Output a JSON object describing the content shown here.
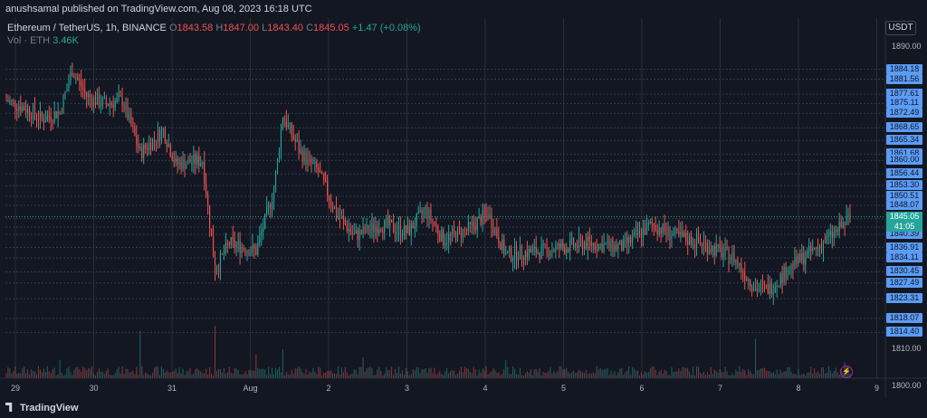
{
  "header": {
    "published": "anushsamal published on TradingView.com, Aug 08, 2023 16:18 UTC"
  },
  "legend": {
    "symbol": "Ethereum / TetherUS, 1h, BINANCE",
    "open_label": "O",
    "open": "1843.58",
    "high_label": "H",
    "high": "1847.00",
    "low_label": "L",
    "low": "1843.40",
    "close_label": "C",
    "close": "1845.05",
    "change": "+1.47 (+0.08%)",
    "vol_label": "Vol · ETH",
    "vol_value": "3.46K"
  },
  "currency": "USDT",
  "footer": {
    "brand": "TradingView"
  },
  "colors": {
    "up": "#26a69a",
    "down": "#ef5350",
    "label_bg": "#5b9cf6",
    "background": "#131722",
    "grid": "#2a2e39"
  },
  "chart_data": {
    "type": "candlestick",
    "price_axis_ticks": [
      "1890.00",
      "1810.00",
      "1800.00"
    ],
    "price_range": [
      1796,
      1892
    ],
    "level_labels": [
      "1884.18",
      "1881.56",
      "1877.61",
      "1875.11",
      "1872.49",
      "1868.65",
      "1865.34",
      "1861.68",
      "1860.00",
      "1856.44",
      "1853.30",
      "1850.51",
      "1848.07",
      "1844.58",
      "1842.31",
      "1840.39",
      "1836.91",
      "1834.11",
      "1830.45",
      "1827.49",
      "1823.31",
      "1818.07",
      "1814.40"
    ],
    "current_price": "1845.05",
    "countdown": "41:05",
    "x_labels": [
      "29",
      "30",
      "31",
      "Aug",
      "2",
      "3",
      "4",
      "5",
      "6",
      "7",
      "8",
      "9"
    ],
    "key_points": [
      {
        "t": 0,
        "price": 1876
      },
      {
        "t": 10,
        "price": 1874
      },
      {
        "t": 20,
        "price": 1871
      },
      {
        "t": 30,
        "price": 1873
      },
      {
        "t": 37,
        "price": 1884
      },
      {
        "t": 45,
        "price": 1877
      },
      {
        "t": 55,
        "price": 1875
      },
      {
        "t": 65,
        "price": 1876
      },
      {
        "t": 75,
        "price": 1862
      },
      {
        "t": 88,
        "price": 1868
      },
      {
        "t": 95,
        "price": 1859
      },
      {
        "t": 110,
        "price": 1860
      },
      {
        "t": 117,
        "price": 1831
      },
      {
        "t": 125,
        "price": 1838
      },
      {
        "t": 140,
        "price": 1836
      },
      {
        "t": 150,
        "price": 1852
      },
      {
        "t": 155,
        "price": 1872
      },
      {
        "t": 165,
        "price": 1862
      },
      {
        "t": 175,
        "price": 1857
      },
      {
        "t": 185,
        "price": 1846
      },
      {
        "t": 195,
        "price": 1840
      },
      {
        "t": 210,
        "price": 1843
      },
      {
        "t": 225,
        "price": 1841
      },
      {
        "t": 235,
        "price": 1847
      },
      {
        "t": 245,
        "price": 1839
      },
      {
        "t": 260,
        "price": 1842
      },
      {
        "t": 270,
        "price": 1846
      },
      {
        "t": 280,
        "price": 1835
      },
      {
        "t": 300,
        "price": 1836
      },
      {
        "t": 325,
        "price": 1838
      },
      {
        "t": 345,
        "price": 1837
      },
      {
        "t": 362,
        "price": 1843
      },
      {
        "t": 375,
        "price": 1840
      },
      {
        "t": 390,
        "price": 1838
      },
      {
        "t": 408,
        "price": 1834
      },
      {
        "t": 420,
        "price": 1826
      },
      {
        "t": 428,
        "price": 1826
      },
      {
        "t": 440,
        "price": 1832
      },
      {
        "t": 455,
        "price": 1837
      },
      {
        "t": 465,
        "price": 1841
      },
      {
        "t": 473,
        "price": 1845
      }
    ],
    "volume_spikes": [
      {
        "t": 30,
        "volume": 0.35
      },
      {
        "t": 75,
        "volume": 0.9
      },
      {
        "t": 117,
        "volume": 1.0
      },
      {
        "t": 140,
        "volume": 0.45
      },
      {
        "t": 155,
        "volume": 0.55
      },
      {
        "t": 200,
        "volume": 0.4
      },
      {
        "t": 280,
        "volume": 0.35
      },
      {
        "t": 420,
        "volume": 0.75
      },
      {
        "t": 470,
        "volume": 0.3
      }
    ],
    "grid": true
  }
}
